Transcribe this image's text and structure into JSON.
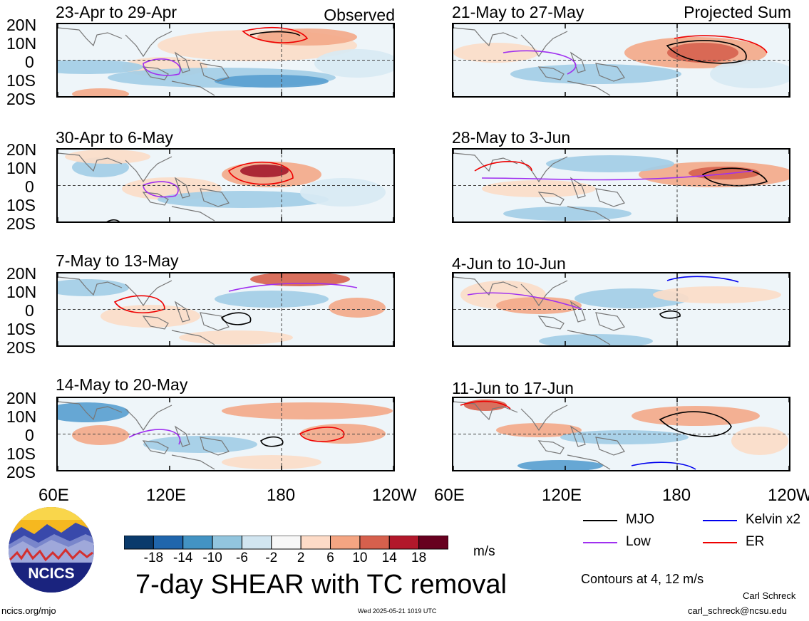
{
  "left_column": {
    "tag": "Observed",
    "panels": [
      {
        "title": "23-Apr to 29-Apr"
      },
      {
        "title": "30-Apr to 6-May"
      },
      {
        "title": "7-May to 13-May"
      },
      {
        "title": "14-May to 20-May"
      }
    ]
  },
  "right_column": {
    "tag": "Projected Sum",
    "panels": [
      {
        "title": "21-May to 27-May"
      },
      {
        "title": "28-May to 3-Jun"
      },
      {
        "title": "4-Jun to 10-Jun"
      },
      {
        "title": "11-Jun to 17-Jun"
      }
    ]
  },
  "lat_labels": [
    "20N",
    "10N",
    "0",
    "10S",
    "20S"
  ],
  "lon_labels": [
    "60E",
    "120E",
    "180",
    "120W"
  ],
  "colorbar": {
    "ticks": [
      "-18",
      "-14",
      "-10",
      "-6",
      "-2",
      "2",
      "6",
      "10",
      "14",
      "18"
    ],
    "unit": "m/s",
    "colors": [
      "#0a3a6b",
      "#2066ac",
      "#4393c3",
      "#92c5de",
      "#d1e5f0",
      "#f7f7f7",
      "#fddbc7",
      "#f4a582",
      "#d6604d",
      "#b2182b",
      "#67001f"
    ]
  },
  "main_title": "7-day SHEAR with TC removal",
  "legend": {
    "items": [
      {
        "label": "MJO",
        "color": "#000000"
      },
      {
        "label": "Kelvin x2",
        "color": "#0000ee"
      },
      {
        "label": "Low",
        "color": "#a030f0"
      },
      {
        "label": "ER",
        "color": "#ee0000"
      }
    ],
    "contours_note": "Contours at 4, 12 m/s"
  },
  "logo": {
    "text": "NCICS"
  },
  "footer": {
    "url": "ncics.org/mjo",
    "timestamp": "Wed 2025-05-21 1019 UTC",
    "author": "Carl Schreck",
    "email": "carl_schreck@ncsu.edu"
  }
}
